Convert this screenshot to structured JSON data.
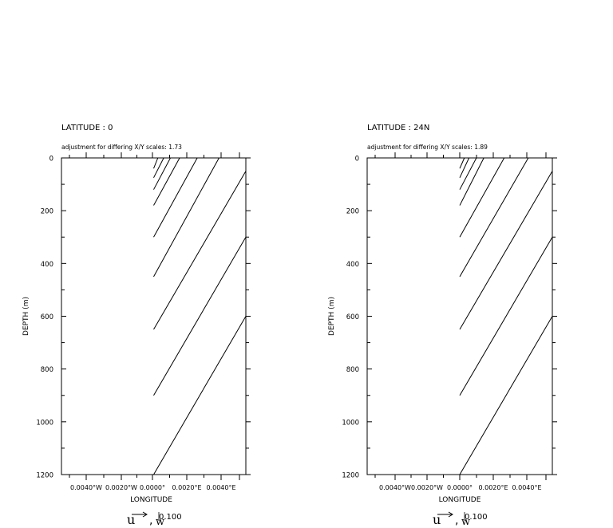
{
  "chart_data": [
    {
      "type": "vector",
      "title": "LATITUDE : 0",
      "subtitle": "adjustment for differing X/Y scales: 1.73",
      "xlabel": "LONGITUDE",
      "ylabel": "DEPTH (m)",
      "xlim": [
        -0.0055,
        0.0055
      ],
      "ylim": [
        1200,
        0
      ],
      "xticks": [
        "0.0040°W",
        "0.0020°W",
        "0.0000°",
        "0.0020°E",
        "0.0040°E"
      ],
      "yticks": [
        "0",
        "200",
        "400",
        "600",
        "800",
        "1000",
        "1200"
      ],
      "legend": {
        "u_label": "u",
        "w_label": "w",
        "sep": ",",
        "scale": "0.100"
      },
      "vectors": [
        {
          "x0": 0.0,
          "y0": 40,
          "x1": 0.00025,
          "y1": 0
        },
        {
          "x0": 0.0,
          "y0": 75,
          "x1": 0.0006,
          "y1": 0
        },
        {
          "x0": 0.0,
          "y0": 120,
          "x1": 0.001,
          "y1": 0
        },
        {
          "x0": 0.0,
          "y0": 180,
          "x1": 0.00155,
          "y1": 0
        },
        {
          "x0": 0.0,
          "y0": 300,
          "x1": 0.0026,
          "y1": 0
        },
        {
          "x0": 0.0,
          "y0": 450,
          "x1": 0.0039,
          "y1": 0
        },
        {
          "x0": 0.0,
          "y0": 650,
          "x1": 0.0055,
          "y1": 50
        },
        {
          "x0": 0.0,
          "y0": 900,
          "x1": 0.0055,
          "y1": 300
        },
        {
          "x0": 0.0,
          "y0": 1200,
          "x1": 0.0055,
          "y1": 600
        }
      ]
    },
    {
      "type": "vector",
      "title": "LATITUDE : 24N",
      "subtitle": "adjustment for differing X/Y scales: 1.89",
      "xlabel": "LONGITUDE",
      "ylabel": "DEPTH (m)",
      "xlim": [
        -0.005,
        0.005
      ],
      "ylim": [
        1200,
        0
      ],
      "xticks": [
        "0.0040°W",
        "0.0020°W",
        "0.0000°",
        "0.0020°E",
        "0.0040°E"
      ],
      "yticks": [
        "0",
        "200",
        "400",
        "600",
        "800",
        "1000",
        "1200"
      ],
      "legend": {
        "u_label": "u",
        "w_label": "w",
        "sep": ",",
        "scale": "0.100"
      },
      "vectors": [
        {
          "x0": 0.0,
          "y0": 40,
          "x1": 0.00025,
          "y1": 0
        },
        {
          "x0": 0.0,
          "y0": 75,
          "x1": 0.0005,
          "y1": 0
        },
        {
          "x0": 0.0,
          "y0": 120,
          "x1": 0.0009,
          "y1": 0
        },
        {
          "x0": 0.0,
          "y0": 180,
          "x1": 0.0013,
          "y1": 0
        },
        {
          "x0": 0.0,
          "y0": 300,
          "x1": 0.0024,
          "y1": 0
        },
        {
          "x0": 0.0,
          "y0": 450,
          "x1": 0.0037,
          "y1": 0
        },
        {
          "x0": 0.0,
          "y0": 650,
          "x1": 0.005,
          "y1": 50
        },
        {
          "x0": 0.0,
          "y0": 900,
          "x1": 0.005,
          "y1": 300
        },
        {
          "x0": 0.0,
          "y0": 1200,
          "x1": 0.005,
          "y1": 600
        }
      ]
    }
  ]
}
